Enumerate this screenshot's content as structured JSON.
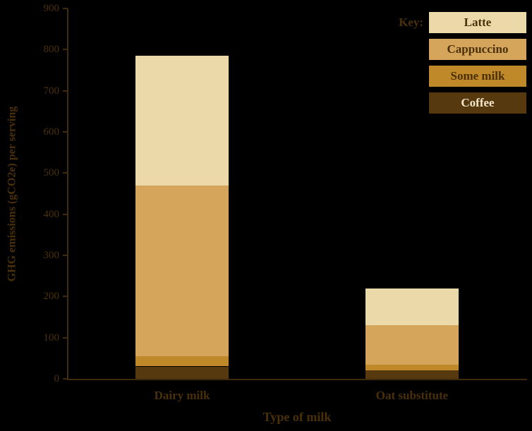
{
  "page": {
    "background": "#000000",
    "text_color": "#4a3008"
  },
  "chart_data": {
    "type": "bar",
    "stacked": true,
    "title": "",
    "xlabel": "Type of milk",
    "ylabel": "GHG emissions (gCO2e) per serving",
    "ylim": [
      0,
      900
    ],
    "ytick_interval": 100,
    "yticks": [
      0,
      100,
      200,
      300,
      400,
      500,
      600,
      700,
      800,
      900
    ],
    "grid": false,
    "categories": [
      "Dairy milk",
      "Oat substitute"
    ],
    "series": [
      {
        "name": "Coffee",
        "color": "#57390f",
        "values": [
          30,
          20
        ]
      },
      {
        "name": "Some milk",
        "color": "#bf8828",
        "values": [
          25,
          15
        ]
      },
      {
        "name": "Cappuccino",
        "color": "#d4a55a",
        "values": [
          415,
          95
        ]
      },
      {
        "name": "Latte",
        "color": "#ebd9a9",
        "values": [
          315,
          90
        ]
      }
    ],
    "totals": {
      "Dairy milk": 785,
      "Oat substitute": 220
    },
    "legend": {
      "title": "Key:",
      "position": "top-right",
      "entries": [
        {
          "label": "Latte",
          "color": "#ebd9a9",
          "text_color": "#4a3008"
        },
        {
          "label": "Cappuccino",
          "color": "#d4a55a",
          "text_color": "#4a3008"
        },
        {
          "label": "Some milk",
          "color": "#bf8828",
          "text_color": "#4a3008"
        },
        {
          "label": "Coffee",
          "color": "#57390f",
          "text_color": "#f3e7cb"
        }
      ]
    }
  }
}
